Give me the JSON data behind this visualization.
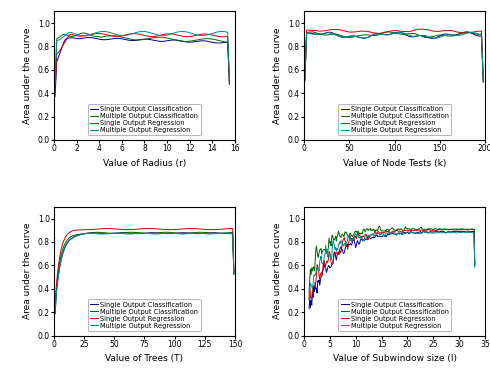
{
  "colors": {
    "blue": "#00008B",
    "green": "#006400",
    "red": "#CC0000",
    "cyan": "#008B8B"
  },
  "legend_labels": [
    "Single Output Classification",
    "Multiple Output Classification",
    "Single Output Regression",
    "Multiple Output Regression"
  ],
  "plot1": {
    "xlabel": "Value of Radius (r)",
    "ylabel": "Area under the curve",
    "xlim": [
      0,
      16
    ],
    "ylim": [
      0.0,
      1.1
    ],
    "yticks": [
      0.0,
      0.2,
      0.4,
      0.6,
      0.8,
      1.0
    ],
    "xticks": [
      0,
      2,
      4,
      6,
      8,
      10,
      12,
      14,
      16
    ]
  },
  "plot2": {
    "xlabel": "Value of Node Tests (k)",
    "ylabel": "Area under the curve",
    "xlim": [
      0,
      200
    ],
    "ylim": [
      0.0,
      1.1
    ],
    "yticks": [
      0.0,
      0.2,
      0.4,
      0.6,
      0.8,
      1.0
    ],
    "xticks": [
      0,
      50,
      100,
      150,
      200
    ]
  },
  "plot3": {
    "xlabel": "Value of Trees (T)",
    "ylabel": "Area under the curve",
    "xlim": [
      0,
      150
    ],
    "ylim": [
      0.0,
      1.1
    ],
    "yticks": [
      0.0,
      0.2,
      0.4,
      0.6,
      0.8,
      1.0
    ],
    "xticks": [
      0,
      25,
      50,
      75,
      100,
      125,
      150
    ]
  },
  "plot4": {
    "xlabel": "Value of Subwindow size (l)",
    "ylabel": "Area under the curve",
    "xlim": [
      0,
      35
    ],
    "ylim": [
      0.0,
      1.1
    ],
    "yticks": [
      0.0,
      0.2,
      0.4,
      0.6,
      0.8,
      1.0
    ],
    "xticks": [
      0,
      5,
      10,
      15,
      20,
      25,
      30,
      35
    ]
  },
  "legend_fontsize": 4.8,
  "axis_fontsize": 6.5,
  "tick_fontsize": 5.5
}
